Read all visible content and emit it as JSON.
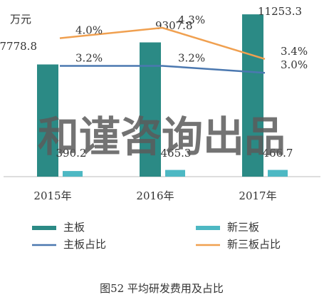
{
  "chart_data": {
    "type": "bar-line",
    "unit_label": "万元",
    "caption": "图52 平均研发费用及占比",
    "watermark": "和谨咨询出品",
    "categories": [
      "2015年",
      "2016年",
      "2017年"
    ],
    "ylim": [
      0,
      12000
    ],
    "y2lim": [
      0,
      5
    ],
    "series": [
      {
        "name": "主板",
        "type": "bar",
        "color": "#2b8a85",
        "values": [
          7778.8,
          9307.8,
          11253.3
        ]
      },
      {
        "name": "新三板",
        "type": "bar",
        "color": "#4db8c3",
        "values": [
          390.2,
          465.3,
          466.7
        ]
      },
      {
        "name": "主板占比",
        "type": "line",
        "axis": "y2",
        "color": "#4b78b0",
        "values": [
          3.2,
          3.2,
          3.0
        ],
        "value_labels": [
          "3.2%",
          "3.2%",
          "3.0%"
        ]
      },
      {
        "name": "新三板占比",
        "type": "line",
        "axis": "y2",
        "color": "#f0a050",
        "values": [
          4.0,
          4.3,
          3.4
        ],
        "value_labels": [
          "4.0%",
          "4.3%",
          "3.4%"
        ]
      }
    ]
  }
}
